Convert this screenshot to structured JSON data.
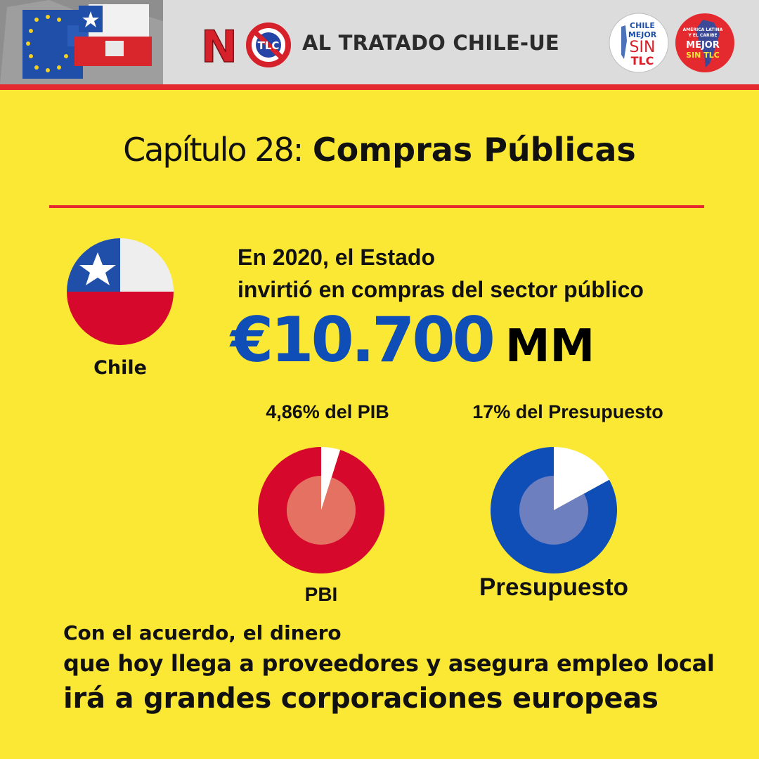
{
  "header": {
    "logo_no": "NO",
    "logo_tlc": "TLC",
    "campaign_title": "AL TRATADO CHILE-UE",
    "badge_left": [
      "CHILE",
      "MEJOR",
      "SIN",
      "TLC"
    ],
    "badge_right": [
      "AMÉRICA LATINA",
      "Y EL CARIBE",
      "MEJOR",
      "SIN TLC"
    ]
  },
  "title": {
    "chapter": "Capítulo 28:",
    "subject": "Compras Públicas"
  },
  "country": {
    "label": "Chile"
  },
  "intro": {
    "line1": "En 2020, el Estado",
    "line2": "invirtió en compras del sector público"
  },
  "amount": {
    "value": "€10.700",
    "unit": "MM"
  },
  "chart_data": [
    {
      "type": "pie",
      "title": "4,86% del PIB",
      "label": "PBI",
      "values": [
        4.86,
        95.14
      ],
      "colors": {
        "share": "#ffffff",
        "rest": "#d6082c",
        "inner": "#e47162"
      }
    },
    {
      "type": "pie",
      "title": "17% del Presupuesto",
      "label": "Presupuesto",
      "values": [
        17,
        83
      ],
      "colors": {
        "share": "#ffffff",
        "rest": "#0f4eb7",
        "inner": "#6d7fbf"
      }
    }
  ],
  "closing": {
    "line1": "Con el acuerdo, el dinero",
    "line2": "que hoy llega a proveedores y asegura empleo local",
    "line3": "irá a grandes corporaciones europeas"
  },
  "colors": {
    "background": "#fbe834",
    "accent_red": "#e52a2f",
    "euro_blue": "#0f4eb7"
  }
}
